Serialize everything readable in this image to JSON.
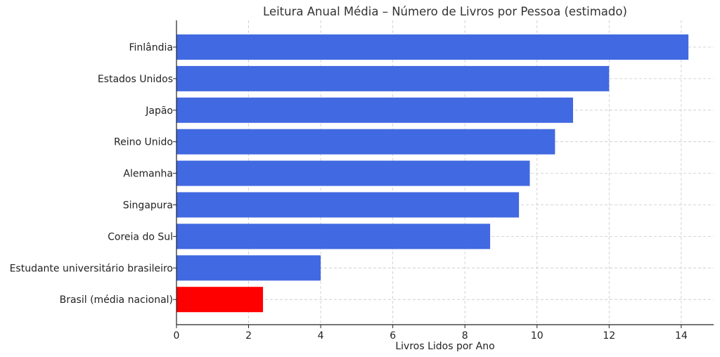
{
  "chart_data": {
    "type": "bar",
    "orientation": "horizontal",
    "title": "Leitura Anual Média – Número de Livros por Pessoa (estimado)",
    "xlabel": "Livros Lidos por Ano",
    "ylabel": "",
    "xlim": [
      0,
      14.9
    ],
    "xticks": [
      0,
      2,
      4,
      6,
      8,
      10,
      12,
      14
    ],
    "grid": true,
    "categories": [
      "Finlândia",
      "Estados Unidos",
      "Japão",
      "Reino Unido",
      "Alemanha",
      "Singapura",
      "Coreia do Sul",
      "Estudante universitário brasileiro",
      "Brasil (média nacional)"
    ],
    "values": [
      14.2,
      12,
      11,
      10.5,
      9.8,
      9.5,
      8.7,
      4,
      2.4
    ],
    "colors": [
      "#4169e1",
      "#4169e1",
      "#4169e1",
      "#4169e1",
      "#4169e1",
      "#4169e1",
      "#4169e1",
      "#4169e1",
      "#ff0000"
    ]
  }
}
